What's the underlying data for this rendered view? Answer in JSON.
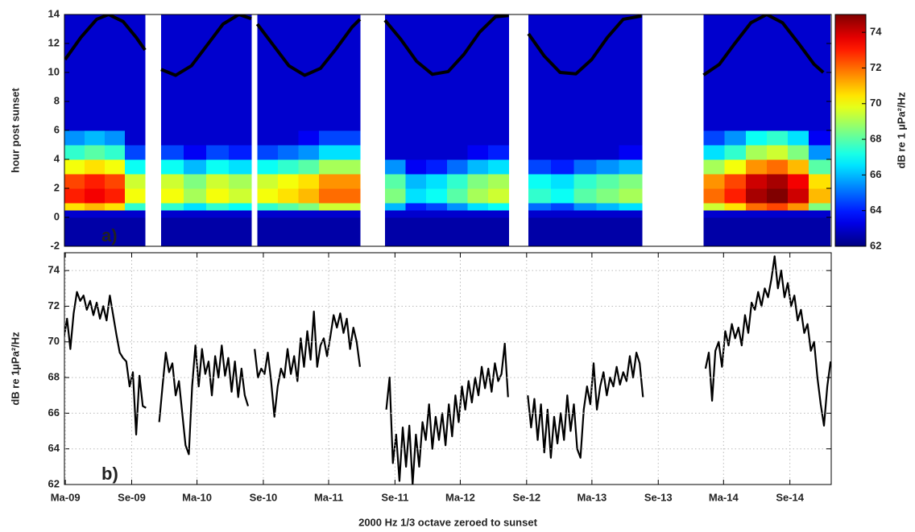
{
  "chart_data": [
    {
      "type": "heatmap",
      "ylabel": "hour post sunset",
      "panel_label": "a)",
      "panel_label_color": "#e3262b",
      "xlim": [
        2009.155,
        2014.98
      ],
      "ylim": [
        -2,
        14
      ],
      "yticks": [
        -2,
        0,
        2,
        4,
        6,
        8,
        10,
        12,
        14
      ],
      "grid": false,
      "colormap": "jet",
      "colorbar": {
        "label": "dB re 1 µPa²/Hz",
        "clim": [
          62,
          75
        ],
        "ticks": [
          62,
          64,
          66,
          68,
          70,
          72,
          74
        ]
      },
      "y_edges": [
        -2,
        0,
        0.5,
        1,
        2,
        3,
        4,
        5,
        6,
        14
      ],
      "segments": [
        {
          "x_edges": [
            2009.155,
            2009.308,
            2009.461,
            2009.614,
            2009.767
          ],
          "columns": [
            [
              62.5,
              63,
              70.5,
              73,
              72.5,
              70,
              67.5,
              65.5,
              63
            ],
            [
              62.5,
              63,
              71,
              73.5,
              73,
              70.5,
              68,
              66,
              63
            ],
            [
              62.5,
              63,
              70.5,
              73,
              72.5,
              70,
              67.5,
              65.5,
              63
            ],
            [
              62.5,
              63,
              67.5,
              70,
              69.5,
              67,
              64.5,
              63,
              63
            ]
          ]
        },
        {
          "x_edges": [
            2009.889,
            2010.061,
            2010.232,
            2010.404,
            2010.575
          ],
          "columns": [
            [
              62.5,
              63,
              67.5,
              70,
              69.5,
              67,
              64.5,
              63,
              63
            ],
            [
              62.5,
              63,
              66.5,
              69,
              68.5,
              66,
              63.5,
              63,
              63
            ],
            [
              62.5,
              63,
              67.5,
              70,
              69.5,
              67,
              64.5,
              63,
              63
            ],
            [
              62.5,
              63,
              67,
              69.5,
              69,
              66.5,
              64,
              63,
              63
            ]
          ]
        },
        {
          "x_edges": [
            2010.62,
            2010.776,
            2010.932,
            2011.088,
            2011.244,
            2011.4
          ],
          "columns": [
            [
              62.5,
              63,
              67.5,
              70,
              69.5,
              67,
              64.5,
              63,
              63
            ],
            [
              62.5,
              63,
              68,
              70.5,
              70,
              67.5,
              65,
              63,
              63
            ],
            [
              62.5,
              63,
              68.5,
              71,
              70.5,
              68,
              65.5,
              63.5,
              63
            ],
            [
              62.5,
              63,
              69.5,
              72,
              71.5,
              69,
              66.5,
              64.5,
              63
            ],
            [
              62.5,
              63,
              69.5,
              72,
              71.5,
              69,
              66.5,
              64.5,
              63
            ]
          ]
        },
        {
          "x_edges": [
            2011.59,
            2011.747,
            2011.903,
            2012.06,
            2012.217,
            2012.373,
            2012.53
          ],
          "columns": [
            [
              62.5,
              63,
              66,
              68.5,
              68,
              65.5,
              63,
              63,
              63
            ],
            [
              62.5,
              63,
              64,
              66.5,
              66,
              63.5,
              63,
              63,
              63
            ],
            [
              62.5,
              63,
              64.5,
              67,
              66.5,
              64,
              63,
              63,
              63
            ],
            [
              62.5,
              63,
              65.5,
              68,
              67.5,
              65,
              63,
              63,
              63
            ],
            [
              62.5,
              63,
              66.5,
              69,
              68.5,
              66,
              63.5,
              63,
              63
            ],
            [
              62.5,
              63,
              67,
              69.5,
              69,
              66.5,
              64,
              63,
              63
            ]
          ]
        },
        {
          "x_edges": [
            2012.68,
            2012.852,
            2013.024,
            2013.196,
            2013.368,
            2013.54
          ],
          "columns": [
            [
              62.5,
              63,
              65,
              67.5,
              67,
              64.5,
              63,
              63,
              63
            ],
            [
              62.5,
              63,
              64.5,
              67,
              66.5,
              64,
              63,
              63,
              63
            ],
            [
              62.5,
              63,
              65.5,
              68,
              67.5,
              65,
              63,
              63,
              63
            ],
            [
              62.5,
              63,
              66,
              68.5,
              68,
              65.5,
              63,
              63,
              63
            ],
            [
              62.5,
              63,
              66.5,
              69,
              68.5,
              66,
              63.5,
              63,
              63
            ]
          ]
        },
        {
          "x_edges": [
            2014.01,
            2014.17,
            2014.33,
            2014.49,
            2014.65,
            2014.81,
            2014.97
          ],
          "columns": [
            [
              62.5,
              63,
              69.5,
              72,
              71.5,
              69,
              66.5,
              64.5,
              63
            ],
            [
              62.5,
              63,
              70.5,
              73,
              72.5,
              70,
              67.5,
              65.5,
              63
            ],
            [
              62.5,
              63,
              72,
              74.5,
              74,
              71.5,
              69,
              67,
              63
            ],
            [
              62.5,
              63,
              72.5,
              75,
              74.5,
              72,
              69.5,
              67.5,
              63
            ],
            [
              62.5,
              63,
              71.5,
              74,
              73.5,
              71,
              68.5,
              66.5,
              63
            ],
            [
              62.5,
              63,
              68.5,
              71,
              70.5,
              68,
              65.5,
              63.5,
              63
            ]
          ]
        }
      ],
      "curve": {
        "color": "#000000",
        "x": [
          2009.16,
          2009.28,
          2009.4,
          2009.49,
          2009.6,
          2009.7,
          2009.767,
          2009.83,
          2009.889,
          2010.0,
          2010.12,
          2010.24,
          2010.36,
          2010.48,
          2010.575,
          2010.6,
          2010.62,
          2010.74,
          2010.86,
          2010.98,
          2011.1,
          2011.22,
          2011.34,
          2011.4,
          2011.5,
          2011.59,
          2011.71,
          2011.83,
          2011.95,
          2012.07,
          2012.19,
          2012.31,
          2012.43,
          2012.53,
          2012.6,
          2012.68,
          2012.8,
          2012.92,
          2013.04,
          2013.16,
          2013.28,
          2013.4,
          2013.54,
          2013.8,
          2014.01,
          2014.13,
          2014.25,
          2014.37,
          2014.49,
          2014.61,
          2014.73,
          2014.85,
          2014.92
        ],
        "values": [
          10.89,
          12.42,
          13.67,
          14.0,
          13.52,
          12.42,
          11.55,
          null,
          10.21,
          9.8,
          10.46,
          11.9,
          13.34,
          14.0,
          13.71,
          null,
          13.34,
          11.9,
          10.46,
          9.8,
          10.28,
          11.64,
          13.13,
          13.67,
          null,
          13.6,
          12.29,
          10.77,
          9.87,
          10.06,
          11.25,
          12.79,
          13.85,
          13.93,
          null,
          12.67,
          11.13,
          10.0,
          9.9,
          10.89,
          12.42,
          13.67,
          13.9,
          null,
          9.82,
          10.56,
          12.03,
          13.43,
          14.0,
          13.43,
          12.03,
          10.56,
          10.0
        ]
      }
    },
    {
      "type": "line",
      "ylabel": "dB re 1µPa²/Hz",
      "xlabel": "2000 Hz 1/3 octave zeroed to sunset",
      "panel_label": "b)",
      "panel_label_color": "#e3262b",
      "xlim": [
        2009.155,
        2014.98
      ],
      "xticks": [
        {
          "value": 2009.162,
          "label": "Ma-09"
        },
        {
          "value": 2009.666,
          "label": "Se-09"
        },
        {
          "value": 2010.162,
          "label": "Ma-10"
        },
        {
          "value": 2010.666,
          "label": "Se-10"
        },
        {
          "value": 2011.162,
          "label": "Ma-11"
        },
        {
          "value": 2011.666,
          "label": "Se-11"
        },
        {
          "value": 2012.162,
          "label": "Ma-12"
        },
        {
          "value": 2012.666,
          "label": "Se-12"
        },
        {
          "value": 2013.162,
          "label": "Ma-13"
        },
        {
          "value": 2013.666,
          "label": "Se-13"
        },
        {
          "value": 2014.162,
          "label": "Ma-14"
        },
        {
          "value": 2014.666,
          "label": "Se-14"
        }
      ],
      "ylim": [
        62,
        75
      ],
      "yticks": [
        62,
        64,
        66,
        68,
        70,
        72,
        74
      ],
      "grid": true,
      "color": "#000000",
      "x": [
        2009.15,
        2009.175,
        2009.2,
        2009.225,
        2009.25,
        2009.275,
        2009.3,
        2009.325,
        2009.35,
        2009.375,
        2009.4,
        2009.425,
        2009.45,
        2009.475,
        2009.5,
        2009.525,
        2009.55,
        2009.575,
        2009.6,
        2009.625,
        2009.65,
        2009.675,
        2009.7,
        2009.725,
        2009.75,
        2009.775,
        2009.8,
        2009.825,
        2009.85,
        2009.875,
        2009.9,
        2009.925,
        2009.95,
        2009.975,
        2010.0,
        2010.025,
        2010.05,
        2010.075,
        2010.1,
        2010.125,
        2010.15,
        2010.175,
        2010.2,
        2010.225,
        2010.25,
        2010.275,
        2010.3,
        2010.325,
        2010.35,
        2010.375,
        2010.4,
        2010.425,
        2010.45,
        2010.475,
        2010.5,
        2010.525,
        2010.55,
        2010.575,
        2010.6,
        2010.625,
        2010.65,
        2010.675,
        2010.7,
        2010.725,
        2010.75,
        2010.775,
        2010.8,
        2010.825,
        2010.85,
        2010.875,
        2010.9,
        2010.925,
        2010.95,
        2010.975,
        2011.0,
        2011.025,
        2011.05,
        2011.075,
        2011.1,
        2011.125,
        2011.15,
        2011.175,
        2011.2,
        2011.225,
        2011.25,
        2011.275,
        2011.3,
        2011.325,
        2011.35,
        2011.375,
        2011.4,
        2011.425,
        2011.45,
        2011.475,
        2011.5,
        2011.525,
        2011.55,
        2011.575,
        2011.6,
        2011.625,
        2011.65,
        2011.675,
        2011.7,
        2011.725,
        2011.75,
        2011.775,
        2011.8,
        2011.825,
        2011.85,
        2011.875,
        2011.9,
        2011.925,
        2011.95,
        2011.975,
        2012.0,
        2012.025,
        2012.05,
        2012.075,
        2012.1,
        2012.125,
        2012.15,
        2012.175,
        2012.2,
        2012.225,
        2012.25,
        2012.275,
        2012.3,
        2012.325,
        2012.35,
        2012.375,
        2012.4,
        2012.425,
        2012.45,
        2012.475,
        2012.5,
        2012.525,
        2012.55,
        2012.575,
        2012.6,
        2012.625,
        2012.65,
        2012.675,
        2012.7,
        2012.725,
        2012.75,
        2012.775,
        2012.8,
        2012.825,
        2012.85,
        2012.875,
        2012.9,
        2012.925,
        2012.95,
        2012.975,
        2013.0,
        2013.025,
        2013.05,
        2013.075,
        2013.1,
        2013.125,
        2013.15,
        2013.175,
        2013.2,
        2013.225,
        2013.25,
        2013.275,
        2013.3,
        2013.325,
        2013.35,
        2013.375,
        2013.4,
        2013.425,
        2013.45,
        2013.475,
        2013.5,
        2013.525,
        2013.55,
        2013.575,
        2013.6,
        2013.625,
        2013.65,
        2013.675,
        2013.7,
        2013.725,
        2013.75,
        2013.775,
        2013.8,
        2013.825,
        2013.85,
        2013.875,
        2013.9,
        2013.925,
        2013.95,
        2013.975,
        2014.0,
        2014.025,
        2014.05,
        2014.075,
        2014.1,
        2014.125,
        2014.15,
        2014.175,
        2014.2,
        2014.225,
        2014.25,
        2014.275,
        2014.3,
        2014.325,
        2014.35,
        2014.375,
        2014.4,
        2014.425,
        2014.45,
        2014.475,
        2014.5,
        2014.525,
        2014.55,
        2014.575,
        2014.6,
        2014.625,
        2014.65,
        2014.675,
        2014.7,
        2014.725,
        2014.75,
        2014.775,
        2014.8,
        2014.825,
        2014.85,
        2014.875,
        2014.9,
        2014.925,
        2014.95,
        2014.975
      ],
      "values": [
        70.2,
        71.3,
        69.6,
        71.6,
        72.8,
        72.3,
        72.6,
        71.8,
        72.3,
        71.5,
        72.2,
        71.3,
        72.0,
        71.2,
        72.6,
        71.5,
        70.4,
        69.4,
        69.1,
        68.9,
        67.5,
        68.3,
        64.8,
        68.1,
        66.4,
        66.3,
        null,
        null,
        null,
        65.5,
        67.5,
        69.4,
        68.3,
        68.8,
        67.0,
        67.8,
        66.0,
        64.2,
        63.7,
        67.5,
        69.8,
        67.5,
        69.6,
        68.2,
        68.9,
        67.0,
        69.2,
        68.0,
        69.8,
        68.1,
        69.1,
        67.2,
        68.9,
        66.9,
        68.5,
        67.0,
        66.4,
        null,
        69.6,
        68.0,
        68.5,
        68.2,
        69.4,
        67.8,
        65.8,
        67.5,
        68.5,
        68.0,
        69.6,
        68.2,
        69.2,
        67.8,
        70.2,
        68.6,
        70.6,
        69.0,
        71.7,
        68.6,
        69.8,
        70.2,
        69.2,
        70.3,
        71.5,
        70.8,
        71.6,
        70.5,
        71.3,
        69.6,
        70.8,
        70.0,
        68.6,
        null,
        null,
        null,
        null,
        null,
        null,
        null,
        66.2,
        68.0,
        63.2,
        64.8,
        62.2,
        65.2,
        63.0,
        65.3,
        62.0,
        64.8,
        63.0,
        65.5,
        64.5,
        66.5,
        64.0,
        65.8,
        64.5,
        66.0,
        64.2,
        66.5,
        64.7,
        67.0,
        65.5,
        67.5,
        66.2,
        67.8,
        66.6,
        68.0,
        67.0,
        68.6,
        67.4,
        68.5,
        67.2,
        68.8,
        67.8,
        68.2,
        69.9,
        66.9,
        null,
        null,
        null,
        null,
        null,
        67.0,
        65.2,
        66.8,
        64.5,
        66.5,
        63.8,
        66.2,
        63.5,
        65.8,
        64.3,
        66.0,
        64.5,
        67.0,
        65.0,
        66.5,
        64.0,
        63.5,
        66.2,
        67.5,
        66.5,
        68.8,
        66.2,
        67.5,
        68.3,
        67.0,
        68.0,
        67.5,
        68.6,
        67.6,
        68.3,
        67.8,
        69.2,
        68.0,
        69.4,
        68.8,
        66.9,
        null,
        null,
        null,
        null,
        null,
        null,
        null,
        null,
        null,
        null,
        null,
        null,
        null,
        null,
        null,
        null,
        null,
        null,
        68.5,
        69.4,
        66.7,
        69.5,
        70.0,
        68.6,
        70.6,
        69.8,
        71.0,
        70.2,
        70.8,
        69.8,
        71.5,
        70.5,
        72.2,
        71.8,
        72.8,
        72.0,
        73.0,
        72.5,
        73.5,
        74.8,
        73.0,
        74.0,
        72.5,
        73.3,
        72.0,
        72.6,
        71.2,
        71.8,
        70.5,
        71.0,
        69.5,
        70.0,
        68.0,
        66.5,
        65.3,
        67.5,
        68.9
      ]
    }
  ]
}
